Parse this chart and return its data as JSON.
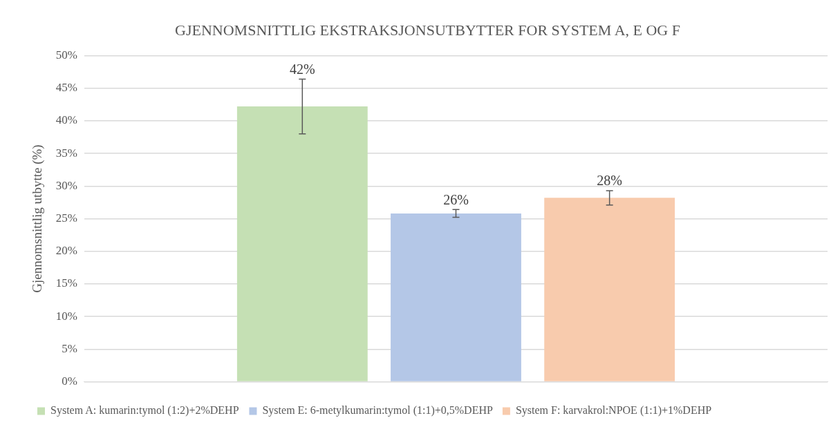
{
  "chart_data": {
    "type": "bar",
    "title": "GJENNOMSNITTLIG EKSTRAKSJONSUTBYTTER FOR SYSTEM A, E OG F",
    "ylabel": "Gjennomsnittlig utbytte (%)",
    "categories": [
      null
    ],
    "series": [
      {
        "name": "System A: kumarin:tymol (1:2)+2%DEHP",
        "color": "#c5e0b4",
        "values": [
          42.2
        ],
        "errors": [
          4.2
        ],
        "value_labels": [
          "42%"
        ]
      },
      {
        "name": "System E: 6-metylkumarin:tymol (1:1)+0,5%DEHP",
        "color": "#b4c7e7",
        "values": [
          25.8
        ],
        "errors": [
          0.6
        ],
        "value_labels": [
          "26%"
        ]
      },
      {
        "name": "System F: karvakrol:NPOE (1:1)+1%DEHP",
        "color": "#f8cbad",
        "values": [
          28.2
        ],
        "errors": [
          1.1
        ],
        "value_labels": [
          "28%"
        ]
      }
    ],
    "ylim": [
      0,
      50
    ],
    "yticks": [
      {
        "value": 0,
        "label": "0%"
      },
      {
        "value": 5,
        "label": "5%"
      },
      {
        "value": 10,
        "label": "10%"
      },
      {
        "value": 15,
        "label": "15%"
      },
      {
        "value": 20,
        "label": "20%"
      },
      {
        "value": 25,
        "label": "25%"
      },
      {
        "value": 30,
        "label": "30%"
      },
      {
        "value": 35,
        "label": "35%"
      },
      {
        "value": 40,
        "label": "40%"
      },
      {
        "value": 45,
        "label": "45%"
      },
      {
        "value": 50,
        "label": "50%"
      }
    ],
    "grid": "y",
    "legend": "bottom"
  }
}
